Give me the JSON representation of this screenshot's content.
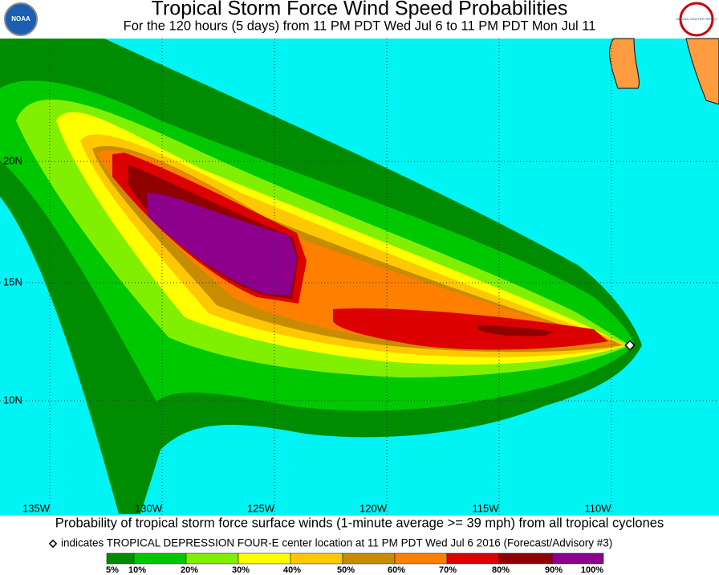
{
  "header": {
    "title": "Tropical Storm Force Wind Speed Probabilities",
    "subtitle": "For the 120 hours (5 days) from 11 PM PDT Wed Jul 6 to 11 PM PDT Mon Jul 11",
    "left_logo": "NOAA",
    "right_logo": "NATIONAL WEATHER SERVICE"
  },
  "map": {
    "lon_labels": [
      "135W",
      "130W",
      "125W",
      "120W",
      "115W",
      "110W"
    ],
    "lat_labels": [
      "20N",
      "15N",
      "10N"
    ]
  },
  "caption": {
    "line1": "Probability of tropical storm force surface winds (1-minute average >= 39 mph) from all tropical cyclones",
    "line2": "indicates TROPICAL DEPRESSION FOUR-E center location at 11 PM PDT Wed Jul 6 2016 (Forecast/Advisory #3)"
  },
  "legend": {
    "labels": [
      "5%",
      "10%",
      "20%",
      "30%",
      "40%",
      "50%",
      "60%",
      "70%",
      "80%",
      "90%",
      "100%"
    ],
    "colors": [
      "#008c00",
      "#00c800",
      "#80f000",
      "#ffff00",
      "#ffc800",
      "#c88c00",
      "#ff8000",
      "#dc0000",
      "#900000",
      "#8c008c"
    ]
  }
}
